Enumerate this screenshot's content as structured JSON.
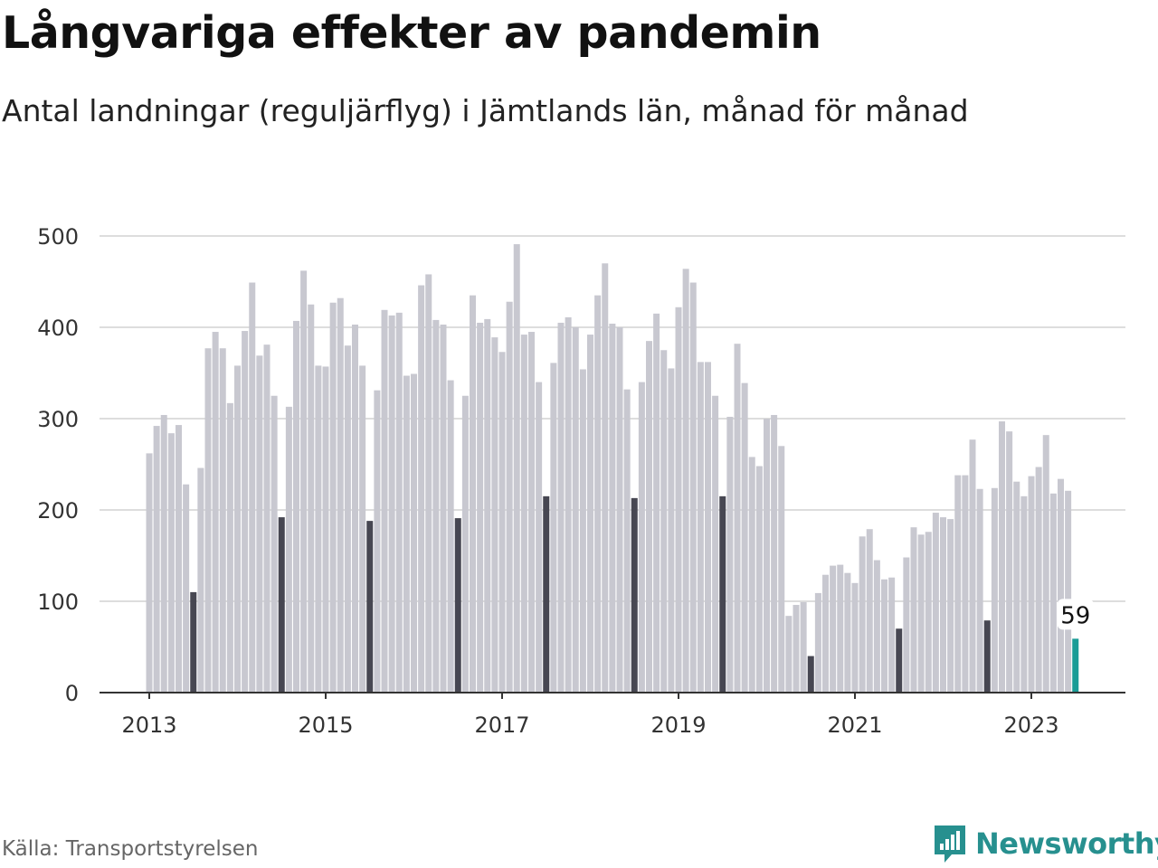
{
  "header": {
    "title": "Långvariga effekter av pandemin",
    "subtitle": "Antal landningar (reguljärflyg) i Jämtlands län, månad för månad"
  },
  "footer": {
    "source": "Källa: Transportstyrelsen",
    "brand": "Newsworthy"
  },
  "colors": {
    "bar": "#c8c8d0",
    "july": "#474752",
    "latest": "#1a9c96",
    "grid": "#dddddd",
    "axis": "#333333",
    "brand": "#27908f"
  },
  "chart_data": {
    "type": "bar",
    "x_start": "2013-01",
    "x_end": "2023-07",
    "x_ticks": [
      "2013",
      "2015",
      "2017",
      "2019",
      "2021",
      "2023"
    ],
    "y_ticks": [
      0,
      100,
      200,
      300,
      400,
      500
    ],
    "ylim": [
      0,
      500
    ],
    "grid": true,
    "annotation": {
      "month": "2023-07",
      "label": "59"
    },
    "values": [
      262,
      292,
      304,
      284,
      293,
      228,
      110,
      246,
      377,
      395,
      377,
      317,
      358,
      396,
      449,
      369,
      381,
      325,
      192,
      313,
      407,
      462,
      425,
      358,
      357,
      427,
      432,
      380,
      403,
      358,
      188,
      331,
      419,
      413,
      416,
      347,
      349,
      446,
      458,
      408,
      403,
      342,
      191,
      325,
      435,
      405,
      409,
      389,
      373,
      428,
      491,
      392,
      395,
      340,
      215,
      361,
      405,
      411,
      400,
      354,
      392,
      435,
      470,
      404,
      400,
      332,
      213,
      340,
      385,
      415,
      375,
      355,
      422,
      464,
      449,
      362,
      362,
      325,
      215,
      302,
      382,
      339,
      258,
      248,
      300,
      304,
      270,
      84,
      96,
      99,
      40,
      109,
      129,
      139,
      140,
      131,
      120,
      171,
      179,
      145,
      124,
      126,
      70,
      148,
      181,
      173,
      176,
      197,
      192,
      190,
      238,
      238,
      277,
      223,
      79,
      224,
      297,
      286,
      231,
      215,
      237,
      247,
      282,
      218,
      234,
      221,
      59
    ]
  }
}
